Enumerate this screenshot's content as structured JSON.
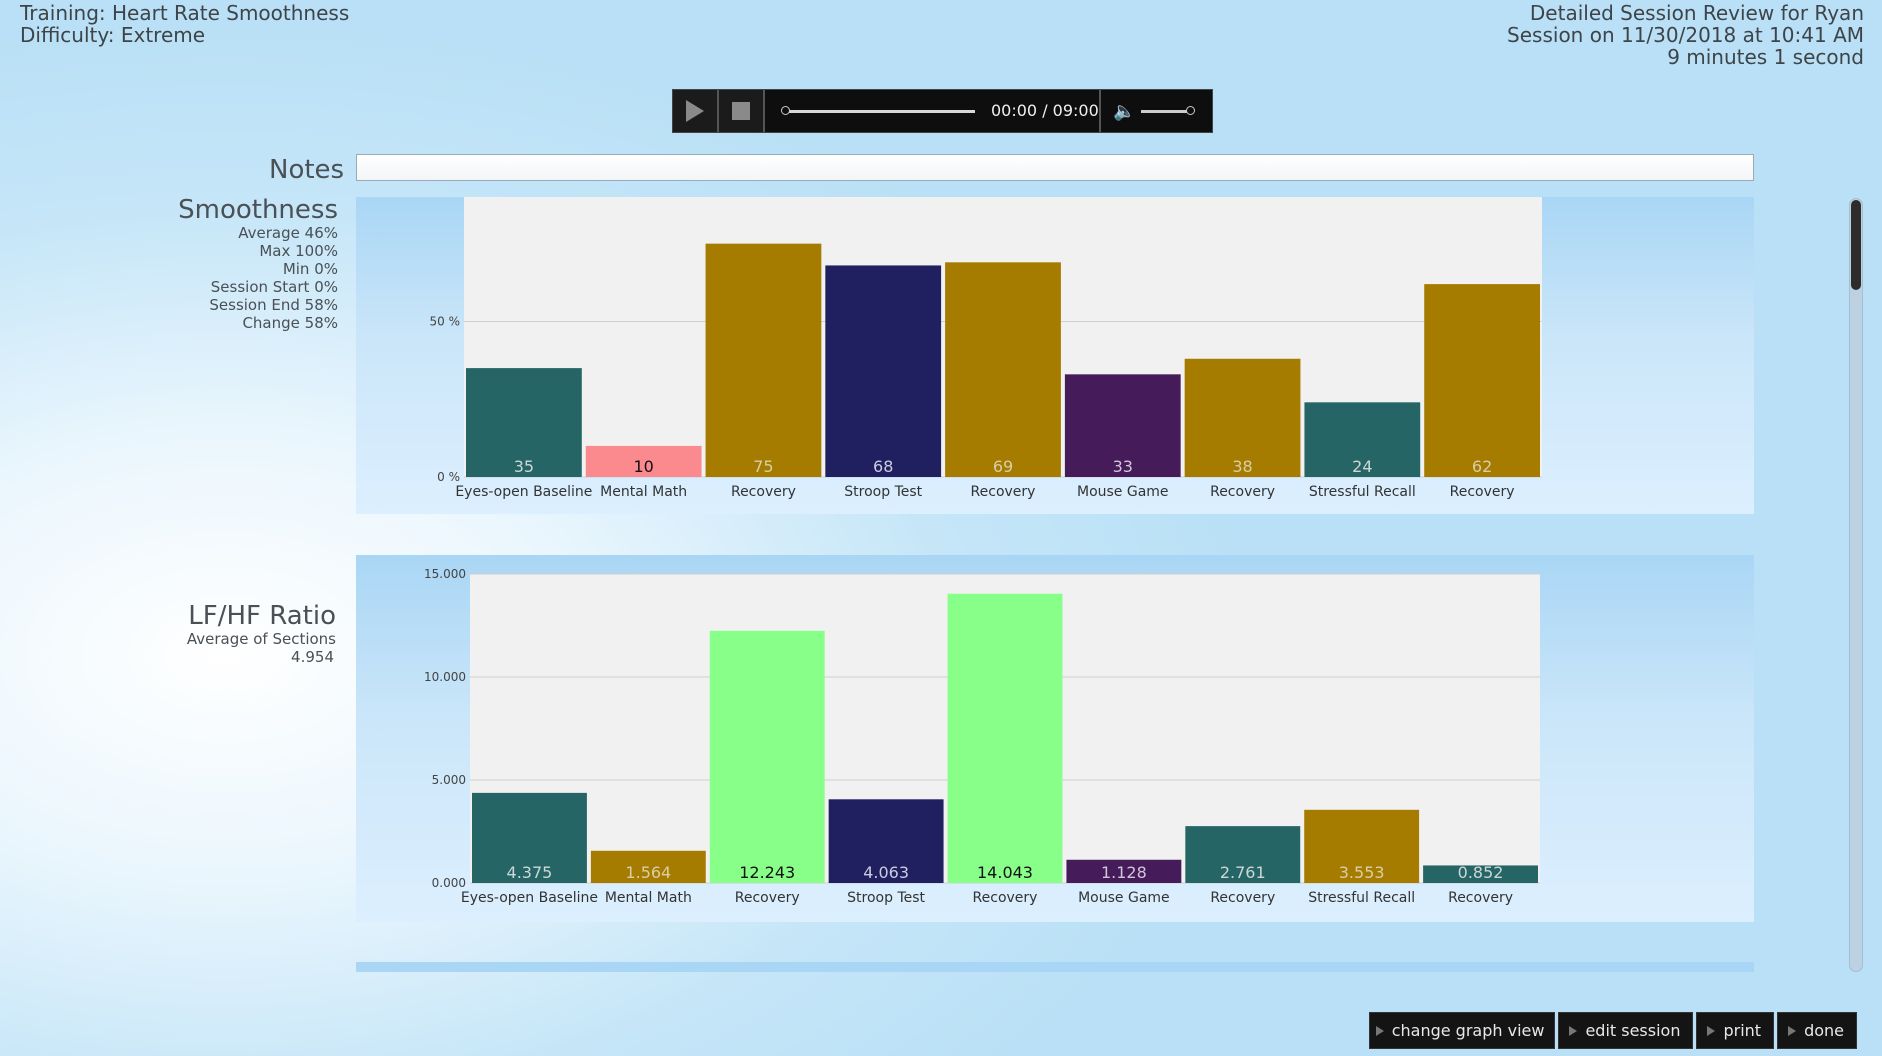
{
  "header": {
    "training": "Training: Heart Rate Smoothness",
    "difficulty": "Difficulty: Extreme",
    "review_title": "Detailed Session Review for Ryan",
    "session_date": "Session on 11/30/2018 at 10:41 AM",
    "duration": "9 minutes 1 second"
  },
  "player": {
    "time": "00:00 / 09:00",
    "progress": 0,
    "volume": 1.0,
    "icons": [
      "play-icon",
      "stop-icon",
      "volume-icon"
    ]
  },
  "notes": {
    "label": "Notes",
    "value": ""
  },
  "smoothness": {
    "title": "Smoothness",
    "stats": [
      "Average 46%",
      "Max 100%",
      "Min 0%",
      "Session Start 0%",
      "Session End 58%",
      "Change 58%"
    ]
  },
  "lfhf": {
    "title": "LF/HF Ratio",
    "subtitle": "Average of Sections",
    "average": "4.954"
  },
  "chart_data": [
    {
      "type": "bar",
      "title": "Smoothness",
      "categories": [
        "Eyes-open Baseline",
        "Mental Math",
        "Recovery",
        "Stroop Test",
        "Recovery",
        "Mouse Game",
        "Recovery",
        "Stressful Recall",
        "Recovery"
      ],
      "values": [
        35,
        10,
        75,
        68,
        69,
        33,
        38,
        24,
        62
      ],
      "value_labels": [
        "35",
        "10",
        "75",
        "68",
        "69",
        "33",
        "38",
        "24",
        "62"
      ],
      "colors": [
        "#256565",
        "#fb8a8f",
        "#a67c00",
        "#202060",
        "#a67c00",
        "#461b5a",
        "#a67c00",
        "#256565",
        "#a67c00"
      ],
      "label_colors": [
        "#cfd6d6",
        "#111111",
        "#d8cfa8",
        "#cccce0",
        "#d8cfa8",
        "#d0c6d8",
        "#d8cfa8",
        "#cfd6d6",
        "#d8cfa8"
      ],
      "yticks": [
        0,
        50
      ],
      "ytick_labels": [
        "0 %",
        "50 %"
      ],
      "ylim": [
        0,
        90
      ],
      "grid": true
    },
    {
      "type": "bar",
      "title": "LF/HF Ratio",
      "categories": [
        "Eyes-open Baseline",
        "Mental Math",
        "Recovery",
        "Stroop Test",
        "Recovery",
        "Mouse Game",
        "Recovery",
        "Stressful Recall",
        "Recovery"
      ],
      "values": [
        4.375,
        1.564,
        12.243,
        4.063,
        14.043,
        1.128,
        2.761,
        3.553,
        0.852
      ],
      "value_labels": [
        "4.375",
        "1.564",
        "12.243",
        "4.063",
        "14.043",
        "1.128",
        "2.761",
        "3.553",
        "0.852"
      ],
      "colors": [
        "#256565",
        "#a67c00",
        "#88ff88",
        "#202060",
        "#88ff88",
        "#461b5a",
        "#256565",
        "#a67c00",
        "#256565"
      ],
      "label_colors": [
        "#cfd6d6",
        "#d8cfa8",
        "#111111",
        "#cccce0",
        "#111111",
        "#d0c6d8",
        "#cfd6d6",
        "#d8cfa8",
        "#cfd6d6"
      ],
      "yticks": [
        0,
        5,
        10,
        15
      ],
      "ytick_labels": [
        "0.000",
        "5.000",
        "10.000",
        "15.000"
      ],
      "ylim": [
        0,
        15
      ],
      "grid": true
    }
  ],
  "buttons": {
    "change_graph_view": "change graph view",
    "edit_session": "edit session",
    "print": "print",
    "done": "done"
  }
}
